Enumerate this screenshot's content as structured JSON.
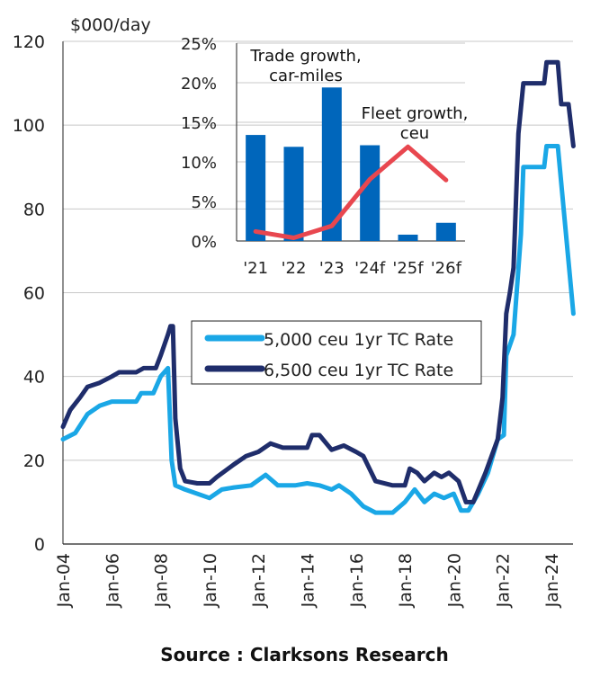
{
  "chart_data": [
    {
      "type": "line",
      "ylabel": "$000/day",
      "ylim": [
        0,
        120
      ],
      "yticks": [
        0,
        20,
        40,
        60,
        80,
        100,
        120
      ],
      "xlim": [
        2004,
        2024.95
      ],
      "xticks": [
        {
          "x": 2004,
          "label": "Jan-04"
        },
        {
          "x": 2006,
          "label": "Jan-06"
        },
        {
          "x": 2008,
          "label": "Jan-08"
        },
        {
          "x": 2010,
          "label": "Jan-10"
        },
        {
          "x": 2012,
          "label": "Jan-12"
        },
        {
          "x": 2014,
          "label": "Jan-14"
        },
        {
          "x": 2016,
          "label": "Jan-16"
        },
        {
          "x": 2018,
          "label": "Jan-18"
        },
        {
          "x": 2020,
          "label": "Jan-20"
        },
        {
          "x": 2022,
          "label": "Jan-22"
        },
        {
          "x": 2024,
          "label": "Jan-24"
        }
      ],
      "grid": true,
      "legend_position": "center",
      "series": [
        {
          "name": "5,000 ceu 1yr TC Rate",
          "color": "#1aa7e6",
          "points": [
            [
              2004,
              25
            ],
            [
              2004.5,
              26.5
            ],
            [
              2005,
              31
            ],
            [
              2005.5,
              33
            ],
            [
              2006,
              34
            ],
            [
              2007,
              34
            ],
            [
              2007.2,
              36
            ],
            [
              2007.7,
              36
            ],
            [
              2008,
              40
            ],
            [
              2008.3,
              42
            ],
            [
              2008.45,
              20
            ],
            [
              2008.6,
              14
            ],
            [
              2009,
              13
            ],
            [
              2010,
              11
            ],
            [
              2010.5,
              13
            ],
            [
              2011,
              13.5
            ],
            [
              2011.7,
              14
            ],
            [
              2012.3,
              16.5
            ],
            [
              2012.8,
              14
            ],
            [
              2013.5,
              14
            ],
            [
              2014,
              14.5
            ],
            [
              2014.5,
              14
            ],
            [
              2015,
              13
            ],
            [
              2015.3,
              14
            ],
            [
              2015.8,
              12
            ],
            [
              2016.3,
              9
            ],
            [
              2016.8,
              7.5
            ],
            [
              2017.5,
              7.5
            ],
            [
              2018,
              10
            ],
            [
              2018.4,
              13
            ],
            [
              2018.8,
              10
            ],
            [
              2019.2,
              12
            ],
            [
              2019.6,
              11
            ],
            [
              2020,
              12
            ],
            [
              2020.3,
              8
            ],
            [
              2020.6,
              8
            ],
            [
              2021,
              12
            ],
            [
              2021.4,
              17
            ],
            [
              2021.8,
              25
            ],
            [
              2022.05,
              26
            ],
            [
              2022.15,
              45
            ],
            [
              2022.45,
              50
            ],
            [
              2022.75,
              74
            ],
            [
              2022.85,
              90
            ],
            [
              2023.7,
              90
            ],
            [
              2023.8,
              95
            ],
            [
              2024.26,
              95
            ],
            [
              2024.9,
              55
            ]
          ]
        },
        {
          "name": "6,500 ceu 1yr TC Rate",
          "color": "#1f2d6b",
          "points": [
            [
              2004,
              28
            ],
            [
              2004.3,
              32
            ],
            [
              2004.7,
              35
            ],
            [
              2005,
              37.5
            ],
            [
              2005.5,
              38.5
            ],
            [
              2006,
              40
            ],
            [
              2006.3,
              41
            ],
            [
              2007,
              41
            ],
            [
              2007.3,
              42
            ],
            [
              2007.8,
              42
            ],
            [
              2008,
              45
            ],
            [
              2008.3,
              50
            ],
            [
              2008.4,
              52
            ],
            [
              2008.5,
              52
            ],
            [
              2008.6,
              30
            ],
            [
              2008.8,
              18
            ],
            [
              2009,
              15
            ],
            [
              2009.5,
              14.5
            ],
            [
              2010,
              14.5
            ],
            [
              2010.3,
              16
            ],
            [
              2011,
              19
            ],
            [
              2011.5,
              21
            ],
            [
              2012,
              22
            ],
            [
              2012.5,
              24
            ],
            [
              2013,
              23
            ],
            [
              2014,
              23
            ],
            [
              2014.2,
              26
            ],
            [
              2014.5,
              26
            ],
            [
              2015,
              22.5
            ],
            [
              2015.5,
              23.5
            ],
            [
              2016,
              22
            ],
            [
              2016.3,
              21
            ],
            [
              2016.8,
              15
            ],
            [
              2017.5,
              14
            ],
            [
              2018,
              14
            ],
            [
              2018.2,
              18
            ],
            [
              2018.5,
              17
            ],
            [
              2018.8,
              15
            ],
            [
              2019.2,
              17
            ],
            [
              2019.5,
              16
            ],
            [
              2019.8,
              17
            ],
            [
              2020.2,
              15
            ],
            [
              2020.5,
              10
            ],
            [
              2020.8,
              10
            ],
            [
              2021.3,
              17
            ],
            [
              2021.8,
              25
            ],
            [
              2022.0,
              35
            ],
            [
              2022.15,
              55
            ],
            [
              2022.3,
              60
            ],
            [
              2022.45,
              66
            ],
            [
              2022.65,
              98
            ],
            [
              2022.85,
              110
            ],
            [
              2023.7,
              110
            ],
            [
              2023.8,
              115
            ],
            [
              2024.26,
              115
            ],
            [
              2024.4,
              105
            ],
            [
              2024.7,
              105
            ],
            [
              2024.9,
              95
            ]
          ]
        }
      ]
    },
    {
      "type": "bar",
      "categories": [
        "'21",
        "'22",
        "'23",
        "'24f",
        "'25f",
        "'26f"
      ],
      "ylim": [
        0,
        25
      ],
      "yticks": [
        "0%",
        "5%",
        "10%",
        "15%",
        "20%",
        "25%"
      ],
      "series": [
        {
          "name": "Trade growth, car-miles",
          "label_lines": [
            "Trade growth,",
            "car-miles"
          ],
          "type": "bar",
          "color": "#0066bb",
          "values": [
            13.4,
            11.9,
            19.4,
            12.1,
            0.8,
            2.3
          ]
        },
        {
          "name": "Fleet growth, ceu",
          "label_lines": [
            "Fleet growth,",
            "ceu"
          ],
          "type": "line",
          "color": "#e8474f",
          "values": [
            1.2,
            0.4,
            1.9,
            7.8,
            11.9,
            7.7
          ]
        }
      ]
    }
  ],
  "source": "Source : Clarksons Research"
}
